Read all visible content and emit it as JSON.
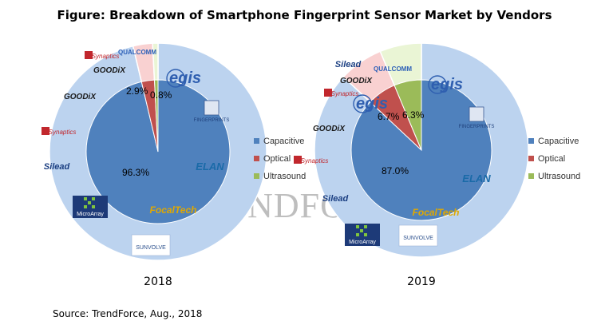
{
  "title": "Figure: Breakdown of Smartphone Fingerprint Sensor Market by Vendors",
  "source": "Source: TrendForce, Aug., 2018",
  "watermark": "TRENDFORCE",
  "colors": {
    "capacitive": "#4f81bd",
    "optical": "#c0504d",
    "ultrasound": "#9bbb59",
    "ring": "#bcd3ef",
    "ring_optical": "#f9d1d1",
    "ring_ultrasound": "#eaf5d5",
    "logo_blue": "#2f5fb0",
    "logo_red": "#c1272d",
    "focaltech": "#e0a800"
  },
  "chart_data": [
    {
      "type": "pie",
      "title": "2018",
      "categories": [
        "Capacitive",
        "Optical",
        "Ultrasound"
      ],
      "values": [
        96.3,
        2.9,
        0.8
      ],
      "labels": [
        "96.3%",
        "2.9%",
        "0.8%"
      ],
      "legend": "right",
      "vendors": {
        "capacitive": [
          "egis",
          "FINGERPRINTS",
          "ELAN",
          "FocalTech",
          "SUNVOLVE",
          "MicroArray",
          "Silead",
          "Synaptics",
          "GOODiX"
        ],
        "optical": [
          "GOODiX",
          "Synaptics"
        ],
        "ultrasound": [
          "QUALCOMM"
        ]
      }
    },
    {
      "type": "pie",
      "title": "2019",
      "categories": [
        "Capacitive",
        "Optical",
        "Ultrasound"
      ],
      "values": [
        87.0,
        6.7,
        6.3
      ],
      "labels": [
        "87.0%",
        "6.7%",
        "6.3%"
      ],
      "legend": "right",
      "vendors": {
        "capacitive": [
          "egis",
          "FINGERPRINTS",
          "ELAN",
          "FocalTech",
          "SUNVOLVE",
          "MicroArray",
          "Silead",
          "Synaptics",
          "GOODiX"
        ],
        "optical": [
          "Silead",
          "GOODiX",
          "Synaptics",
          "egis"
        ],
        "ultrasound": [
          "QUALCOMM"
        ]
      }
    }
  ]
}
